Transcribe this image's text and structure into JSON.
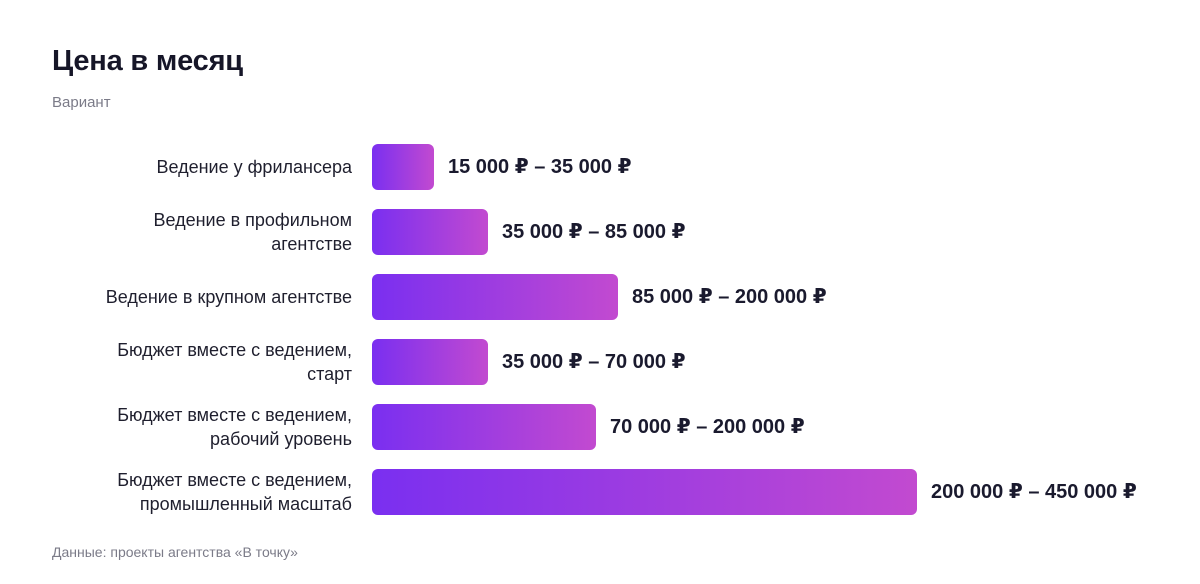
{
  "title": "Цена в месяц",
  "subtitle": "Вариант",
  "source": "Данные: проекты агентства «В точку»",
  "colors": {
    "bar_start": "#7a2ff0",
    "bar_end": "#c24ad0",
    "text": "#1a1a2e",
    "muted": "#7b7b88"
  },
  "chart_data": {
    "type": "bar",
    "orientation": "horizontal",
    "title": "Цена в месяц",
    "subtitle": "Вариант",
    "categories": [
      "Ведение у фрилансера",
      "Ведение в профильном агентстве",
      "Ведение в крупном агентстве",
      "Бюджет вместе с ведением, старт",
      "Бюджет вместе с ведением, рабочий уровень",
      "Бюджет вместе с ведением, промышленный масштаб"
    ],
    "category_lines": [
      [
        "Ведение у фрилансера"
      ],
      [
        "Ведение в профильном",
        "агентстве"
      ],
      [
        "Ведение в крупном агентстве"
      ],
      [
        "Бюджет вместе с ведением,",
        "старт"
      ],
      [
        "Бюджет вместе с ведением,",
        "рабочий уровень"
      ],
      [
        "Бюджет вместе с ведением,",
        "промышленный масштаб"
      ]
    ],
    "ranges": [
      [
        15000,
        35000
      ],
      [
        35000,
        85000
      ],
      [
        85000,
        200000
      ],
      [
        35000,
        70000
      ],
      [
        70000,
        200000
      ],
      [
        200000,
        450000
      ]
    ],
    "value_labels": [
      "15 000 ₽ – 35 000 ₽",
      "35 000 ₽ – 85 000 ₽",
      "85 000 ₽ – 200 000 ₽",
      "35 000 ₽ – 70 000 ₽",
      "70 000 ₽ – 200 000 ₽",
      "200 000 ₽ – 450 000 ₽"
    ],
    "xlabel": "",
    "ylabel": "",
    "grid": false,
    "legend": "none",
    "source": "Данные: проекты агентства «В точку»"
  }
}
